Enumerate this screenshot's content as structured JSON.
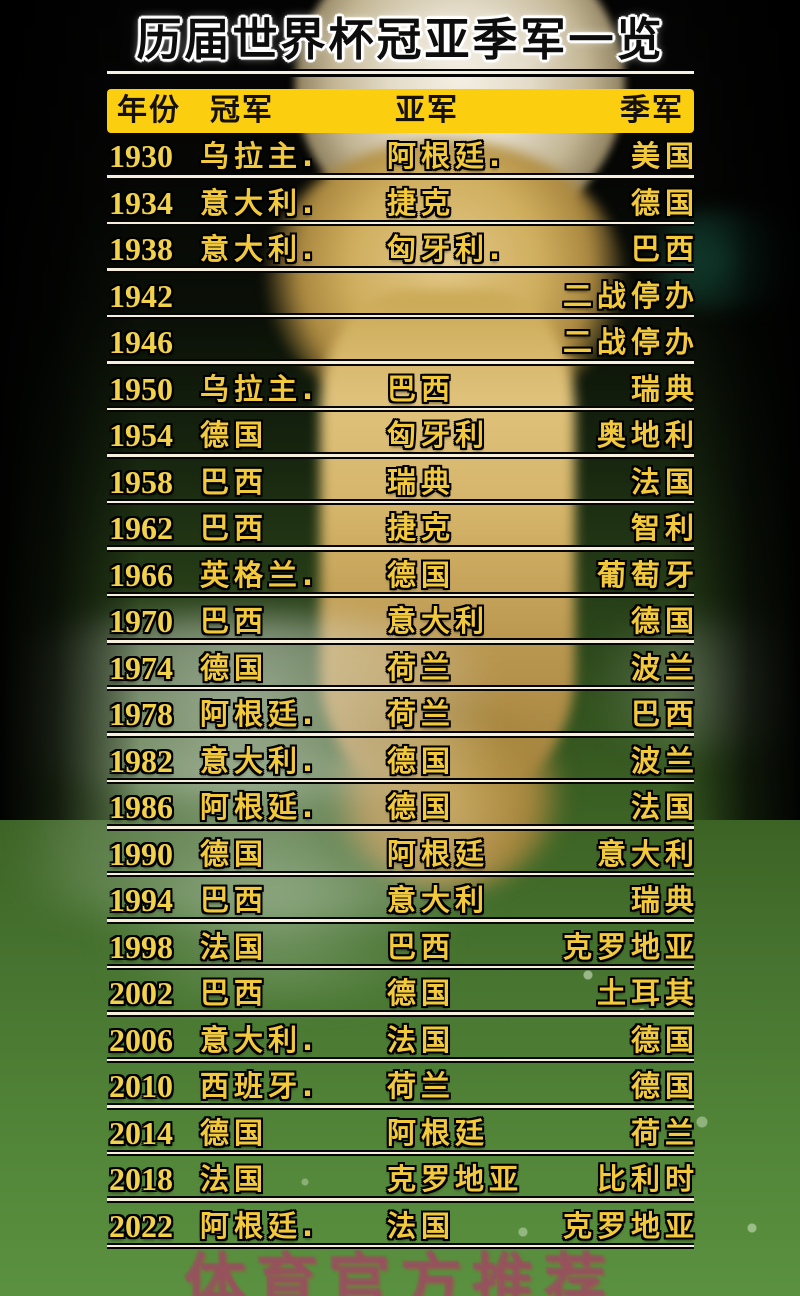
{
  "title": "历届世界杯冠亚季军一览",
  "watermark": "体育官方推荐",
  "colors": {
    "header_bg": "#fbce10",
    "header_text": "#16100a",
    "cell_text_yellow": "#f2c93c",
    "title_text": "#0d0d0d",
    "title_outline": "#ffffff",
    "divider": "#f5efdc",
    "watermark_red": "#944a74",
    "grass_green": "#4a7a2e",
    "trophy_gold": "#d4b469"
  },
  "table": {
    "headers": {
      "year": "年份",
      "champion": "冠军",
      "runner_up": "亚军",
      "third": "季军"
    },
    "rows": [
      {
        "year": "1930",
        "champion": "乌拉主.",
        "runner_up": "阿根廷.",
        "third": "美国"
      },
      {
        "year": "1934",
        "champion": "意大利.",
        "runner_up": "捷克",
        "third": "德国"
      },
      {
        "year": "1938",
        "champion": "意大利.",
        "runner_up": "匈牙利.",
        "third": "巴西"
      },
      {
        "year": "1942",
        "champion": "",
        "runner_up": "",
        "third": "",
        "note": "二战停办"
      },
      {
        "year": "1946",
        "champion": "",
        "runner_up": "",
        "third": "",
        "note": "二战停办"
      },
      {
        "year": "1950",
        "champion": "乌拉主.",
        "runner_up": "巴西",
        "third": "瑞典"
      },
      {
        "year": "1954",
        "champion": "德国",
        "runner_up": "匈牙利",
        "third": "奥地利"
      },
      {
        "year": "1958",
        "champion": "巴西",
        "runner_up": "瑞典",
        "third": "法国"
      },
      {
        "year": "1962",
        "champion": "巴西",
        "runner_up": "捷克",
        "third": "智利"
      },
      {
        "year": "1966",
        "champion": "英格兰.",
        "runner_up": "德国",
        "third": "葡萄牙"
      },
      {
        "year": "1970",
        "champion": "巴西",
        "runner_up": "意大利",
        "third": "德国"
      },
      {
        "year": "1974",
        "champion": "德国",
        "runner_up": "荷兰",
        "third": "波兰"
      },
      {
        "year": "1978",
        "champion": "阿根廷.",
        "runner_up": "荷兰",
        "third": "巴西"
      },
      {
        "year": "1982",
        "champion": "意大利.",
        "runner_up": "德国",
        "third": "波兰"
      },
      {
        "year": "1986",
        "champion": "阿根延.",
        "runner_up": "德国",
        "third": "法国"
      },
      {
        "year": "1990",
        "champion": "德国",
        "runner_up": "阿根廷",
        "third": "意大利"
      },
      {
        "year": "1994",
        "champion": "巴西",
        "runner_up": "意大利",
        "third": "瑞典"
      },
      {
        "year": "1998",
        "champion": "法国",
        "runner_up": "巴西",
        "third": "克罗地亚"
      },
      {
        "year": "2002",
        "champion": "巴西",
        "runner_up": "德国",
        "third": "土耳其"
      },
      {
        "year": "2006",
        "champion": "意大利.",
        "runner_up": "法国",
        "third": "德国"
      },
      {
        "year": "2010",
        "champion": "西班牙.",
        "runner_up": "荷兰",
        "third": "德国"
      },
      {
        "year": "2014",
        "champion": "德国",
        "runner_up": "阿根廷",
        "third": "荷兰"
      },
      {
        "year": "2018",
        "champion": "法国",
        "runner_up": "克罗地亚",
        "third": "比利时"
      },
      {
        "year": "2022",
        "champion": "阿根廷.",
        "runner_up": "法国",
        "third": "克罗地亚"
      }
    ]
  },
  "chart_data": {
    "type": "table",
    "title": "历届世界杯冠亚季军一览",
    "columns": [
      "年份",
      "冠军",
      "亚军",
      "季军"
    ],
    "rows": [
      [
        "1930",
        "乌拉主.",
        "阿根廷.",
        "美国"
      ],
      [
        "1934",
        "意大利.",
        "捷克",
        "德国"
      ],
      [
        "1938",
        "意大利.",
        "匈牙利.",
        "巴西"
      ],
      [
        "1942",
        "",
        "",
        "二战停办"
      ],
      [
        "1946",
        "",
        "",
        "二战停办"
      ],
      [
        "1950",
        "乌拉主.",
        "巴西",
        "瑞典"
      ],
      [
        "1954",
        "德国",
        "匈牙利",
        "奥地利"
      ],
      [
        "1958",
        "巴西",
        "瑞典",
        "法国"
      ],
      [
        "1962",
        "巴西",
        "捷克",
        "智利"
      ],
      [
        "1966",
        "英格兰.",
        "德国",
        "葡萄牙"
      ],
      [
        "1970",
        "巴西",
        "意大利",
        "德国"
      ],
      [
        "1974",
        "德国",
        "荷兰",
        "波兰"
      ],
      [
        "1978",
        "阿根廷.",
        "荷兰",
        "巴西"
      ],
      [
        "1982",
        "意大利.",
        "德国",
        "波兰"
      ],
      [
        "1986",
        "阿根延.",
        "德国",
        "法国"
      ],
      [
        "1990",
        "德国",
        "阿根廷",
        "意大利"
      ],
      [
        "1994",
        "巴西",
        "意大利",
        "瑞典"
      ],
      [
        "1998",
        "法国",
        "巴西",
        "克罗地亚"
      ],
      [
        "2002",
        "巴西",
        "德国",
        "土耳其"
      ],
      [
        "2006",
        "意大利.",
        "法国",
        "德国"
      ],
      [
        "2010",
        "西班牙.",
        "荷兰",
        "德国"
      ],
      [
        "2014",
        "德国",
        "阿根廷",
        "荷兰"
      ],
      [
        "2018",
        "法国",
        "克罗地亚",
        "比利时"
      ],
      [
        "2022",
        "阿根廷.",
        "法国",
        "克罗地亚"
      ]
    ]
  }
}
